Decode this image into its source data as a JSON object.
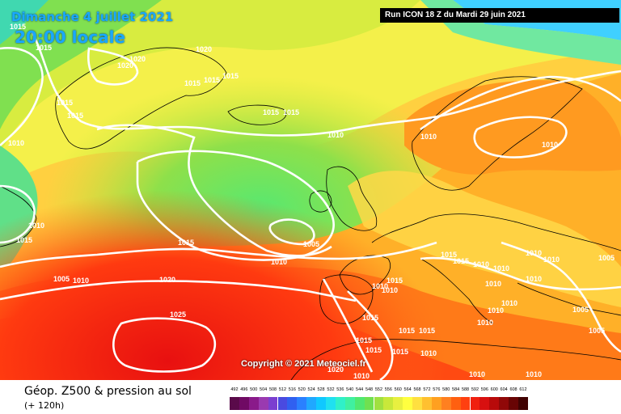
{
  "header": {
    "date": "Dimanche 4 juillet 2021",
    "time": "20:00 locale",
    "run": "Run ICON 18 Z du Mardi 29 juin 2021"
  },
  "copyright": "Copyright © 2021 Meteociel.fr",
  "legend": {
    "title": "Géop. Z500 & pression au sol",
    "subtitle": "(+ 120h)",
    "ticks": [
      "492",
      "496",
      "500",
      "504",
      "508",
      "512",
      "516",
      "520",
      "524",
      "528",
      "532",
      "536",
      "540",
      "544",
      "548",
      "552",
      "556",
      "560",
      "564",
      "568",
      "572",
      "576",
      "580",
      "584",
      "588",
      "592",
      "596",
      "600",
      "604",
      "608",
      "612"
    ],
    "colors": [
      "#5a0a4a",
      "#700a64",
      "#8a1a8a",
      "#9a3ab0",
      "#7b3fd0",
      "#4a4ae0",
      "#3060f0",
      "#2a80ff",
      "#20a8ff",
      "#10c8ff",
      "#20e0f0",
      "#30f0c8",
      "#40f0a0",
      "#50e870",
      "#70e050",
      "#a0e040",
      "#c8e83a",
      "#e8f040",
      "#ffff40",
      "#ffe040",
      "#ffc030",
      "#ffa020",
      "#ff8020",
      "#ff6010",
      "#ff4010",
      "#f02010",
      "#d81010",
      "#b80a0a",
      "#900808",
      "#680404",
      "#400202"
    ]
  },
  "isobars": [
    "1005",
    "1010",
    "1015",
    "1020",
    "1025"
  ],
  "pressure_labels": [
    "1015",
    "1015",
    "1020",
    "1020",
    "1020",
    "1015",
    "1015",
    "1015",
    "1015",
    "1010",
    "1015",
    "1015",
    "1015",
    "1010",
    "1010",
    "1010",
    "1010",
    "1015",
    "1015",
    "1005",
    "1010",
    "1005",
    "1010",
    "1020",
    "1025",
    "1010",
    "1015",
    "1015",
    "1015",
    "1010",
    "1010",
    "1010",
    "1010",
    "1010",
    "1010",
    "1010",
    "1010",
    "1010",
    "1005",
    "1005",
    "1005",
    "1010",
    "1015",
    "1015",
    "1015",
    "1015",
    "1015",
    "1015",
    "1020",
    "1010",
    "1010",
    "1010",
    "1010"
  ],
  "colors": {
    "isobar": "#ffffff",
    "coast": "#000000"
  }
}
